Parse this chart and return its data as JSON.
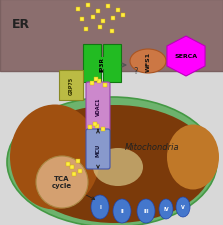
{
  "er_color": "#8b6e6e",
  "er_border_color": "#7a6060",
  "er_label": "ER",
  "mito_outer_color": "#6db36d",
  "mito_inner_color": "#7b3a0a",
  "mito_matrix_left_color": "#a05010",
  "mito_matrix_right_color": "#c07828",
  "mito_label": "Mitochondria",
  "cristae_color": "#4477cc",
  "tca_color": "#d4a070",
  "tca_label": "TCA\ncycle",
  "ip3r_color": "#22bb22",
  "ip3r_label": "IP3R",
  "grp75_color": "#bbbb44",
  "grp75_label": "GRP75",
  "vdac1_color": "#cc88cc",
  "vdac1_label": "VDAC1",
  "mcu_color": "#8899cc",
  "mcu_label": "MCU",
  "wfs1_color": "#cc7744",
  "wfs1_label": "WFS1",
  "serca_color": "#ff00ff",
  "serca_label": "SERCA",
  "ca_color": "#ffee44",
  "background_color": "#d8d8d8",
  "arrow_color": "#555555",
  "light_spot_color": "#e8e0a0"
}
